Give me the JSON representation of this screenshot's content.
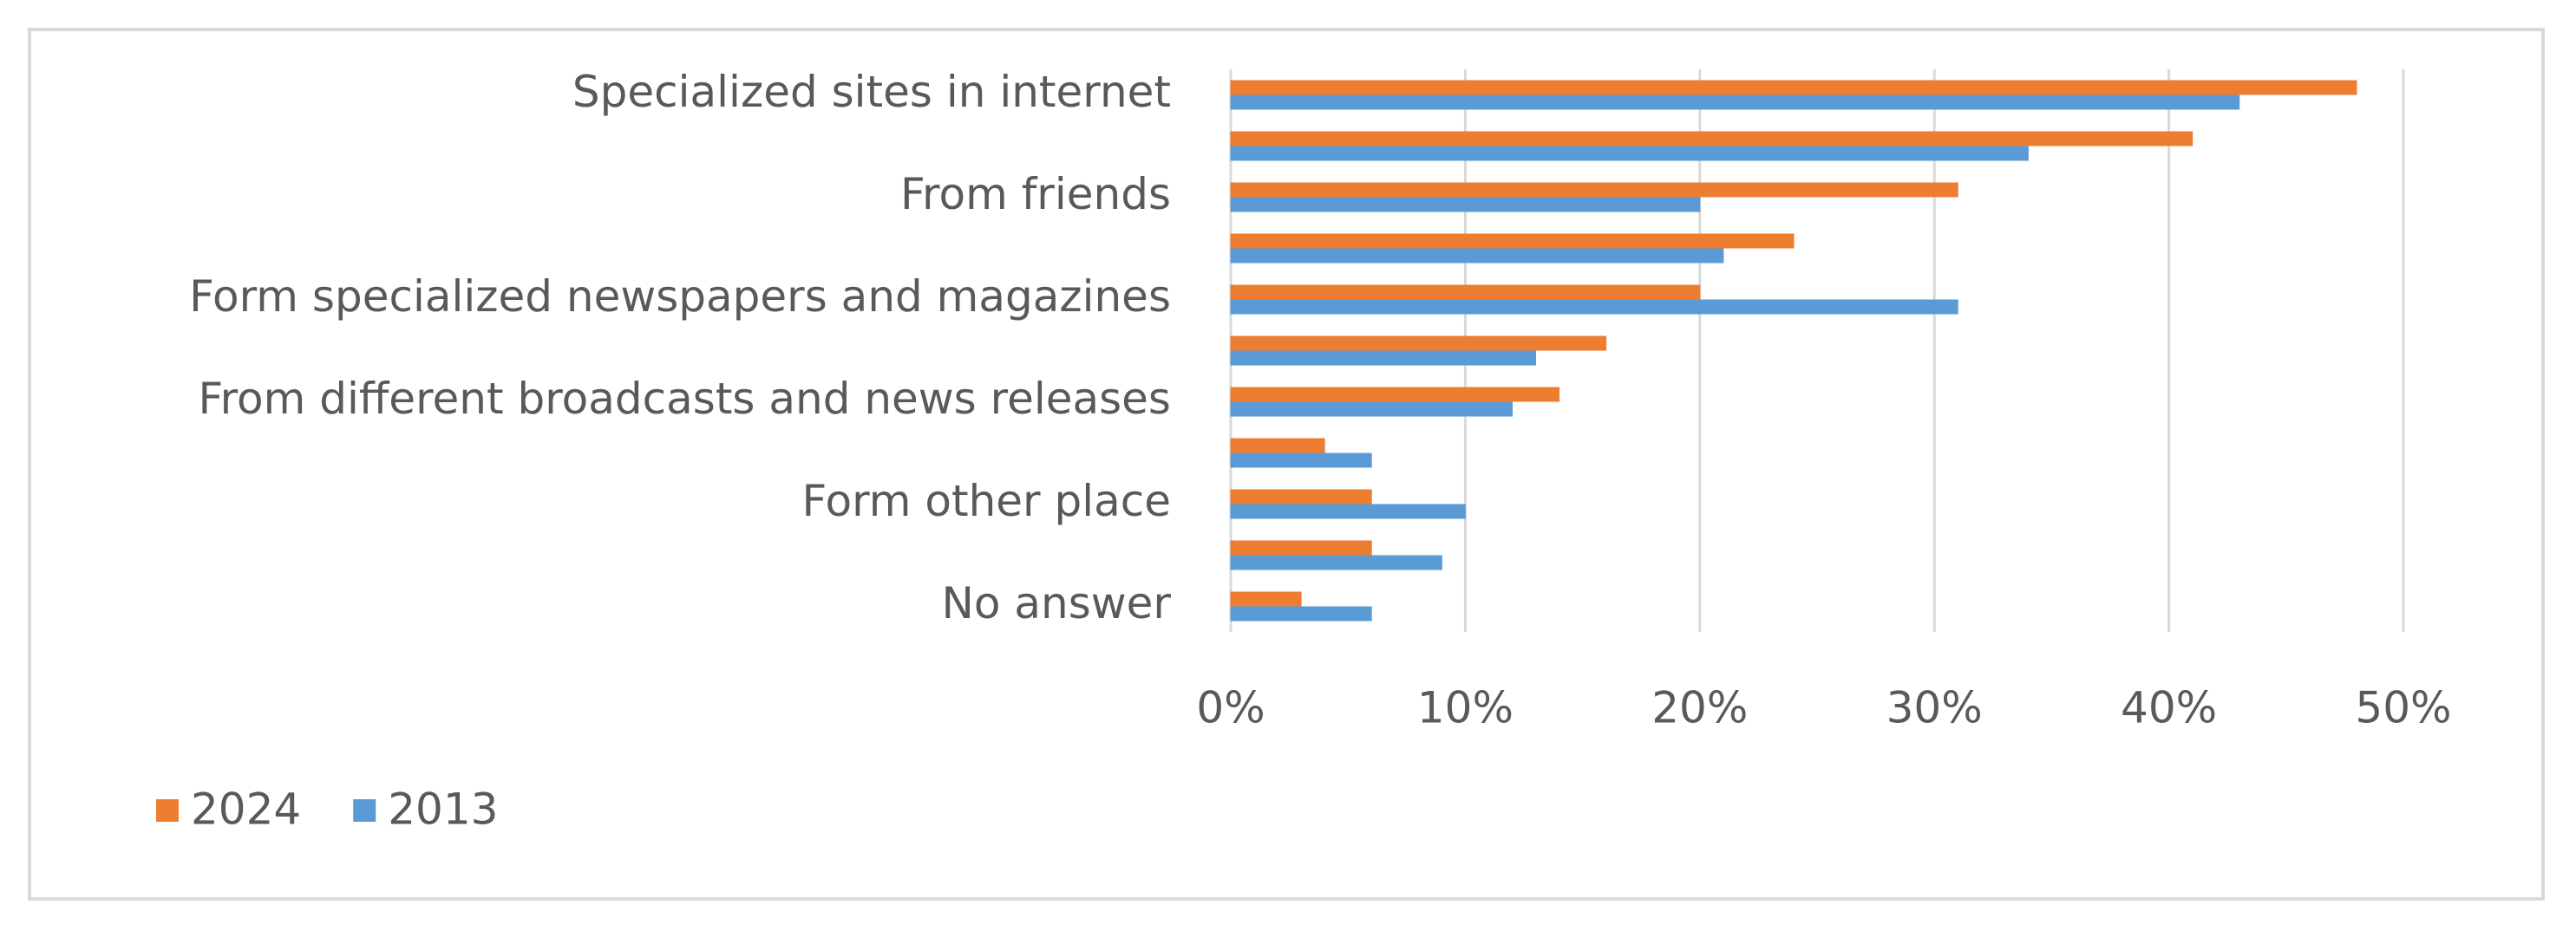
{
  "chart_data": {
    "type": "bar",
    "orientation": "horizontal",
    "categories": [
      "Specialized sites in internet",
      null,
      "From friends",
      null,
      "Form specialized newspapers and magazines",
      null,
      "From different broadcasts and news releases",
      null,
      "Form other place",
      null,
      "No answer"
    ],
    "series": [
      {
        "name": "2024",
        "color": "#ed7d31",
        "values": [
          48,
          41,
          31,
          24,
          20,
          16,
          14,
          4,
          6,
          6,
          3
        ]
      },
      {
        "name": "2013",
        "color": "#5b9bd5",
        "values": [
          43,
          34,
          20,
          21,
          31,
          13,
          12,
          6,
          10,
          9,
          6
        ]
      }
    ],
    "xlim": [
      0,
      50
    ],
    "xticks": [
      {
        "value": 0,
        "label": "0%"
      },
      {
        "value": 10,
        "label": "10%"
      },
      {
        "value": 20,
        "label": "20%"
      },
      {
        "value": 30,
        "label": "30%"
      },
      {
        "value": 40,
        "label": "40%"
      },
      {
        "value": 50,
        "label": "50%"
      }
    ],
    "grid": true,
    "legend": "bottom-left"
  }
}
